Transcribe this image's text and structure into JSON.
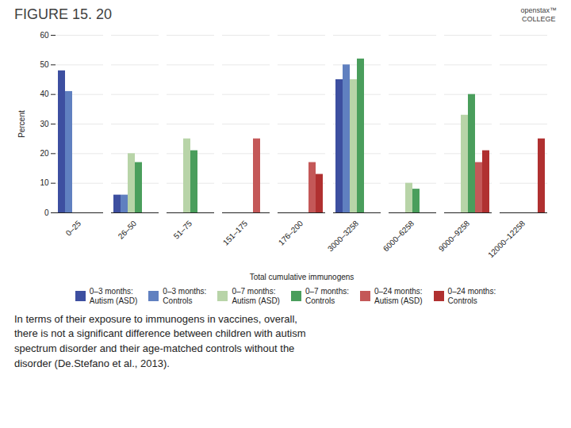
{
  "chart_data": {
    "type": "bar",
    "title": "FIGURE 15. 20",
    "annotations": [
      "openstax™\nCOLLEGE"
    ],
    "caption": "In terms of their exposure to immunogens in vaccines, overall,\nthere is not a significant difference between children with autism\nspectrum disorder and their age-matched controls without the\ndisorder (De.Stefano et al., 2013).",
    "xlabel": "Total cumulative immunogens",
    "ylabel": "Percent",
    "categories": [
      "0–25",
      "26–50",
      "51–75",
      "151–175",
      "176–200",
      "3000–3258",
      "6000–6258",
      "9000–9258",
      "12000–12258"
    ],
    "series": [
      {
        "name": "0–3 months:\nAutism (ASD)",
        "color": "#3d4fa0",
        "values": [
          48,
          6,
          0,
          0,
          0,
          45,
          0,
          0,
          0
        ]
      },
      {
        "name": "0–3 months:\nControls",
        "color": "#6080c0",
        "values": [
          41,
          6,
          0,
          0,
          0,
          50,
          0,
          0,
          0
        ]
      },
      {
        "name": "0–7 months:\nAutism (ASD)",
        "color": "#b8d4a8",
        "values": [
          0,
          20,
          25,
          0,
          0,
          45,
          10,
          33,
          0
        ]
      },
      {
        "name": "0–7 months:\nControls",
        "color": "#4a9e5c",
        "values": [
          0,
          17,
          21,
          0,
          0,
          52,
          8,
          40,
          0
        ]
      },
      {
        "name": "0–24 months:\nAutism (ASD)",
        "color": "#c45858",
        "values": [
          0,
          0,
          0,
          25,
          17,
          0,
          0,
          17,
          0
        ]
      },
      {
        "name": "0–24 months:\nControls",
        "color": "#b03030",
        "values": [
          0,
          0,
          0,
          0,
          13,
          0,
          0,
          21,
          25
        ]
      }
    ],
    "ylim": [
      0,
      60
    ],
    "yticks": [
      0,
      10,
      20,
      30,
      40,
      50,
      60
    ],
    "grid": true,
    "legend": "bottom"
  }
}
